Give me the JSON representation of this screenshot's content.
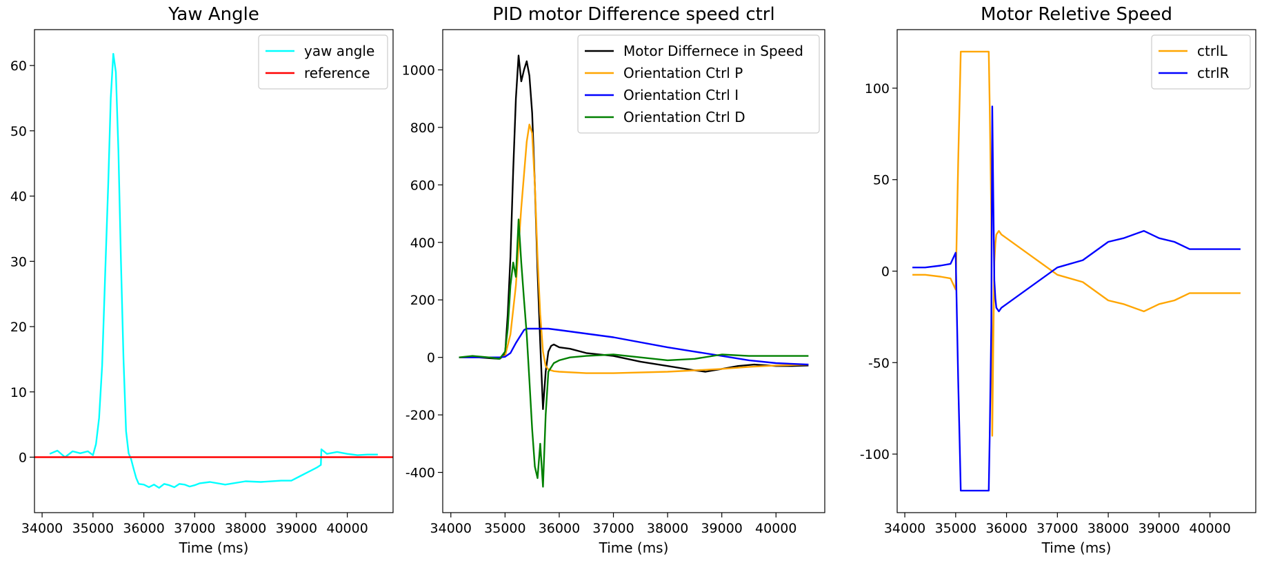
{
  "chart_data": [
    {
      "type": "line",
      "title": "Yaw Angle",
      "xlabel": "Time (ms)",
      "ylabel": "",
      "xlim": [
        33850,
        40900
      ],
      "ylim": [
        -8.5,
        65.5
      ],
      "xticks": [
        34000,
        35000,
        36000,
        37000,
        38000,
        39000,
        40000
      ],
      "yticks": [
        0,
        10,
        20,
        30,
        40,
        50,
        60
      ],
      "grid": false,
      "legend": {
        "position": "top-right"
      },
      "series": [
        {
          "name": "yaw angle",
          "color": "#00ffff",
          "x": [
            34150,
            34300,
            34450,
            34600,
            34750,
            34900,
            35000,
            35060,
            35120,
            35180,
            35240,
            35300,
            35350,
            35400,
            35450,
            35500,
            35550,
            35600,
            35650,
            35700,
            35750,
            35800,
            35850,
            35900,
            36000,
            36100,
            36200,
            36300,
            36400,
            36500,
            36600,
            36700,
            36800,
            36900,
            37000,
            37100,
            37300,
            37600,
            38000,
            38300,
            38700,
            38900,
            39100,
            39200,
            39300,
            39400,
            39480,
            39490,
            39600,
            39800,
            40000,
            40200,
            40400,
            40600
          ],
          "y": [
            0.5,
            1.0,
            0,
            0.9,
            0.6,
            0.9,
            0.3,
            2,
            6,
            14,
            28,
            42,
            55,
            61.8,
            59,
            47,
            30,
            15,
            4,
            0.6,
            -0.3,
            -1.8,
            -3.2,
            -4.1,
            -4.2,
            -4.6,
            -4.2,
            -4.7,
            -4.1,
            -4.3,
            -4.6,
            -4.1,
            -4.2,
            -4.5,
            -4.3,
            -4.0,
            -3.8,
            -4.2,
            -3.7,
            -3.8,
            -3.6,
            -3.6,
            -2.8,
            -2.4,
            -2.0,
            -1.6,
            -1.2,
            1.2,
            0.5,
            0.8,
            0.5,
            0.3,
            0.4,
            0.4
          ]
        },
        {
          "name": "reference",
          "color": "#ff0000",
          "x": [
            33850,
            40900
          ],
          "y": [
            0,
            0
          ]
        }
      ]
    },
    {
      "type": "line",
      "title": "PID motor Difference speed ctrl",
      "xlabel": "Time (ms)",
      "ylabel": "",
      "xlim": [
        33850,
        40900
      ],
      "ylim": [
        -540,
        1140
      ],
      "xticks": [
        34000,
        35000,
        36000,
        37000,
        38000,
        39000,
        40000
      ],
      "yticks": [
        -400,
        -200,
        0,
        200,
        400,
        600,
        800,
        1000
      ],
      "grid": false,
      "legend": {
        "position": "top-right"
      },
      "series": [
        {
          "name": "Motor Differnece in Speed",
          "color": "#000000",
          "x": [
            34150,
            34500,
            34900,
            35000,
            35050,
            35100,
            35150,
            35200,
            35250,
            35300,
            35350,
            35400,
            35450,
            35500,
            35550,
            35600,
            35650,
            35700,
            35750,
            35800,
            35850,
            35900,
            36000,
            36200,
            36500,
            37000,
            37500,
            38000,
            38500,
            38700,
            39000,
            39300,
            39600,
            40000,
            40300,
            40600
          ],
          "y": [
            0,
            0,
            -5,
            10,
            150,
            350,
            650,
            900,
            1050,
            960,
            1000,
            1030,
            980,
            850,
            600,
            300,
            50,
            -180,
            -50,
            20,
            40,
            45,
            35,
            30,
            15,
            5,
            -15,
            -30,
            -45,
            -50,
            -40,
            -30,
            -25,
            -30,
            -30,
            -28
          ]
        },
        {
          "name": "Orientation Ctrl P",
          "color": "#ffa500",
          "x": [
            34150,
            34500,
            34900,
            35000,
            35100,
            35200,
            35300,
            35400,
            35450,
            35500,
            35550,
            35600,
            35650,
            35700,
            35750,
            35800,
            35850,
            35900,
            36000,
            36500,
            37000,
            38000,
            38500,
            39000,
            39500,
            40000,
            40600
          ],
          "y": [
            0,
            0,
            0,
            5,
            80,
            250,
            520,
            750,
            810,
            780,
            600,
            350,
            150,
            20,
            -30,
            -42,
            -45,
            -48,
            -50,
            -55,
            -55,
            -50,
            -45,
            -40,
            -33,
            -28,
            -25
          ]
        },
        {
          "name": "Orientation Ctrl I",
          "color": "#0000ff",
          "x": [
            34150,
            34900,
            35000,
            35100,
            35200,
            35350,
            35400,
            35800,
            36000,
            37000,
            38000,
            39000,
            39500,
            40000,
            40600
          ],
          "y": [
            0,
            0,
            2,
            15,
            50,
            95,
            100,
            100,
            95,
            70,
            35,
            5,
            -10,
            -20,
            -25
          ]
        },
        {
          "name": "Orientation Ctrl D",
          "color": "#008000",
          "x": [
            34150,
            34400,
            34700,
            34900,
            35000,
            35050,
            35100,
            35150,
            35200,
            35250,
            35300,
            35350,
            35400,
            35450,
            35500,
            35550,
            35600,
            35650,
            35700,
            35750,
            35800,
            35900,
            36000,
            36200,
            36500,
            37000,
            37500,
            38000,
            38500,
            39000,
            39500,
            40000,
            40600
          ],
          "y": [
            0,
            5,
            0,
            -5,
            20,
            100,
            250,
            330,
            280,
            480,
            330,
            200,
            80,
            -80,
            -250,
            -380,
            -420,
            -300,
            -450,
            -200,
            -50,
            -20,
            -10,
            0,
            5,
            10,
            0,
            -10,
            -5,
            10,
            5,
            5,
            5
          ]
        }
      ]
    },
    {
      "type": "line",
      "title": "Motor Reletive Speed",
      "xlabel": "Time (ms)",
      "ylabel": "",
      "xlim": [
        33850,
        40900
      ],
      "ylim": [
        -132,
        132
      ],
      "xticks": [
        34000,
        35000,
        36000,
        37000,
        38000,
        39000,
        40000
      ],
      "yticks": [
        -100,
        -50,
        0,
        50,
        100
      ],
      "grid": false,
      "legend": {
        "position": "top-right"
      },
      "series": [
        {
          "name": "ctrlL",
          "color": "#ffa500",
          "x": [
            34150,
            34400,
            34700,
            34900,
            35000,
            35050,
            35080,
            35100,
            35150,
            35600,
            35650,
            35670,
            35700,
            35720,
            35740,
            35760,
            35780,
            35800,
            35850,
            35900,
            36000,
            36200,
            36500,
            37000,
            37500,
            38000,
            38300,
            38700,
            39000,
            39300,
            39600,
            40000,
            40600
          ],
          "y": [
            -2,
            -2,
            -3,
            -4,
            -10,
            60,
            95,
            120,
            120,
            120,
            120,
            90,
            30,
            -90,
            -40,
            5,
            15,
            20,
            22,
            20,
            18,
            14,
            8,
            -2,
            -6,
            -16,
            -18,
            -22,
            -18,
            -16,
            -12,
            -12,
            -12
          ]
        },
        {
          "name": "ctrlR",
          "color": "#0000ff",
          "x": [
            34150,
            34400,
            34700,
            34900,
            35000,
            35050,
            35080,
            35100,
            35150,
            35600,
            35650,
            35670,
            35700,
            35720,
            35740,
            35760,
            35780,
            35800,
            35850,
            35900,
            36000,
            36200,
            36500,
            37000,
            37500,
            38000,
            38300,
            38700,
            39000,
            39300,
            39600,
            40000,
            40600
          ],
          "y": [
            2,
            2,
            3,
            4,
            10,
            -60,
            -95,
            -120,
            -120,
            -120,
            -120,
            -90,
            -30,
            90,
            40,
            -5,
            -15,
            -20,
            -22,
            -20,
            -18,
            -14,
            -8,
            2,
            6,
            16,
            18,
            22,
            18,
            16,
            12,
            12,
            12
          ]
        }
      ]
    }
  ]
}
